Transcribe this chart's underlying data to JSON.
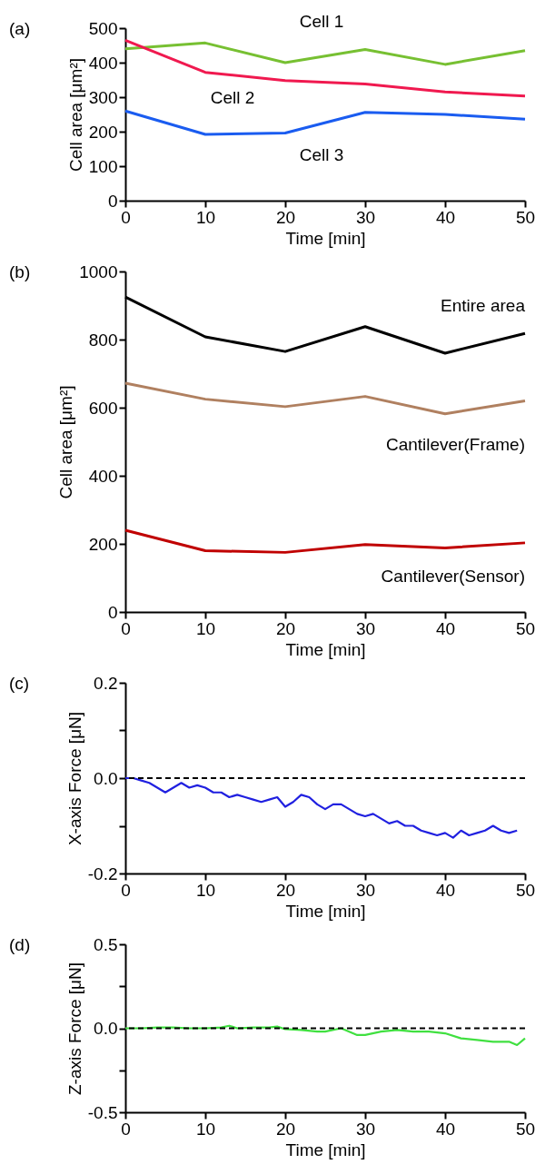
{
  "chart_data": [
    {
      "type": "line",
      "title": "(a)",
      "xlabel": "Time [min]",
      "ylabel": "Cell area [μm²]",
      "x": [
        0,
        10,
        20,
        30,
        40,
        50
      ],
      "xlim": [
        0,
        50
      ],
      "xticks": [
        0,
        10,
        20,
        30,
        40,
        50
      ],
      "ylim": [
        0,
        500
      ],
      "yticks": [
        0,
        100,
        200,
        300,
        400,
        500
      ],
      "grid": false,
      "legend": false,
      "marker": "none",
      "line_style": "solid",
      "series": [
        {
          "name": "Cell 1",
          "color": "#77c032",
          "values": [
            440,
            457,
            400,
            438,
            395,
            435
          ]
        },
        {
          "name": "Cell 2",
          "color": "#f0194f",
          "values": [
            465,
            372,
            348,
            338,
            315,
            303
          ]
        },
        {
          "name": "Cell 3",
          "color": "#1a5cf0",
          "values": [
            260,
            192,
            196,
            256,
            250,
            236
          ]
        }
      ]
    },
    {
      "type": "line",
      "title": "(b)",
      "xlabel": "Time [min]",
      "ylabel": "Cell area [μm²]",
      "x": [
        0,
        10,
        20,
        30,
        40,
        50
      ],
      "xlim": [
        0,
        50
      ],
      "xticks": [
        0,
        10,
        20,
        30,
        40,
        50
      ],
      "ylim": [
        0,
        1000
      ],
      "yticks": [
        0,
        200,
        400,
        600,
        800,
        1000
      ],
      "grid": false,
      "legend": false,
      "marker": "none",
      "line_style": "solid",
      "series": [
        {
          "name": "Entire area",
          "color": "#000000",
          "values": [
            925,
            808,
            765,
            838,
            760,
            818
          ]
        },
        {
          "name": "Cantilever(Frame)",
          "color": "#b08060",
          "values": [
            672,
            625,
            603,
            633,
            582,
            620
          ]
        },
        {
          "name": "Cantilever(Sensor)",
          "color": "#c00000",
          "values": [
            240,
            180,
            175,
            198,
            188,
            203
          ]
        }
      ]
    },
    {
      "type": "line",
      "title": "(c)",
      "xlabel": "Time [min]",
      "ylabel": "X-axis Force [μN]",
      "xlim": [
        0,
        50
      ],
      "xticks": [
        0,
        10,
        20,
        30,
        40,
        50
      ],
      "ylim": [
        -0.2,
        0.2
      ],
      "yticks": [
        {
          "value": -0.2,
          "label": "-0.2"
        },
        {
          "value": -0.1,
          "label": null
        },
        {
          "value": 0,
          "label": "0.0"
        },
        {
          "value": 0.1,
          "label": null
        },
        {
          "value": 0.2,
          "label": "0.2"
        }
      ],
      "grid": false,
      "legend": false,
      "marker": "none",
      "line_style": "solid",
      "ref_lines": [
        {
          "axis": "y",
          "value": 0,
          "color": "#000000",
          "line_style": "dashed"
        }
      ],
      "series": [
        {
          "color": "#2020e0",
          "x": [
            0,
            1,
            2,
            3,
            4,
            5,
            6,
            7,
            8,
            9,
            10,
            11,
            12,
            13,
            14,
            15,
            16,
            17,
            18,
            19,
            20,
            21,
            22,
            23,
            24,
            25,
            26,
            27,
            28,
            29,
            30,
            31,
            32,
            33,
            34,
            35,
            36,
            37,
            38,
            39,
            40,
            41,
            42,
            43,
            44,
            45,
            46,
            47,
            48,
            49
          ],
          "values": [
            0.0,
            0.0,
            -0.005,
            -0.01,
            -0.02,
            -0.03,
            -0.02,
            -0.01,
            -0.02,
            -0.015,
            -0.02,
            -0.03,
            -0.03,
            -0.04,
            -0.035,
            -0.04,
            -0.045,
            -0.05,
            -0.045,
            -0.04,
            -0.06,
            -0.05,
            -0.035,
            -0.04,
            -0.055,
            -0.065,
            -0.055,
            -0.055,
            -0.065,
            -0.075,
            -0.08,
            -0.075,
            -0.085,
            -0.095,
            -0.09,
            -0.1,
            -0.1,
            -0.11,
            -0.115,
            -0.12,
            -0.115,
            -0.125,
            -0.11,
            -0.12,
            -0.115,
            -0.11,
            -0.1,
            -0.11,
            -0.115,
            -0.11
          ]
        }
      ]
    },
    {
      "type": "line",
      "title": "(d)",
      "xlabel": "Time [min]",
      "ylabel": "Z-axis Force [μN]",
      "xlim": [
        0,
        50
      ],
      "xticks": [
        0,
        10,
        20,
        30,
        40,
        50
      ],
      "ylim": [
        -0.5,
        0.5
      ],
      "yticks": [
        {
          "value": -0.5,
          "label": "-0.5"
        },
        {
          "value": -0.25,
          "label": null
        },
        {
          "value": 0,
          "label": "0.0"
        },
        {
          "value": 0.25,
          "label": null
        },
        {
          "value": 0.5,
          "label": "0.5"
        }
      ],
      "grid": false,
      "legend": false,
      "marker": "none",
      "line_style": "solid",
      "ref_lines": [
        {
          "axis": "y",
          "value": 0,
          "color": "#000000",
          "line_style": "dashed"
        }
      ],
      "series": [
        {
          "color": "#40e040",
          "x": [
            0,
            2,
            4,
            6,
            8,
            10,
            12,
            13,
            14,
            16,
            18,
            19,
            20,
            22,
            24,
            25,
            27,
            28,
            29,
            30,
            32,
            34,
            36,
            38,
            40,
            42,
            44,
            46,
            48,
            49,
            50
          ],
          "values": [
            0.0,
            0.0,
            0.005,
            0.005,
            0.0,
            0.0,
            0.005,
            0.015,
            0.0,
            0.005,
            0.005,
            0.01,
            -0.005,
            -0.01,
            -0.02,
            -0.02,
            0.0,
            -0.02,
            -0.04,
            -0.04,
            -0.02,
            -0.01,
            -0.02,
            -0.02,
            -0.03,
            -0.06,
            -0.07,
            -0.08,
            -0.08,
            -0.1,
            -0.06
          ]
        }
      ]
    }
  ]
}
